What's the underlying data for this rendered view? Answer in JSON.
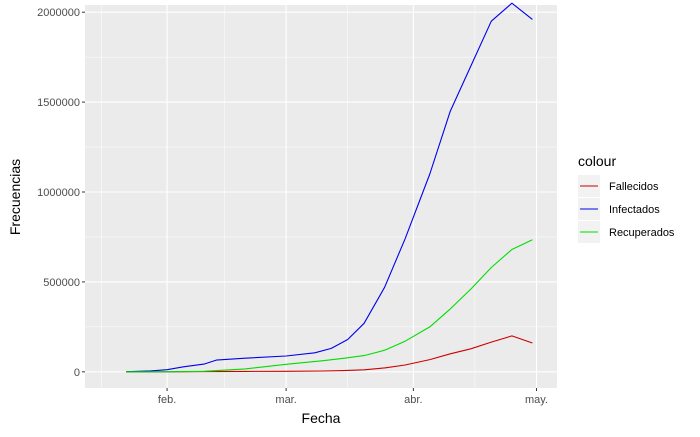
{
  "chart_data": {
    "type": "line",
    "title": "",
    "xlabel": "Fecha",
    "ylabel": "Frecuencias",
    "x_axis_type": "date",
    "xlim": [
      "2020-01-12",
      "2020-05-06"
    ],
    "ylim": [
      -90000,
      2040000
    ],
    "x_ticks": [
      {
        "date": "2020-02-01",
        "label": "feb."
      },
      {
        "date": "2020-03-01",
        "label": "mar."
      },
      {
        "date": "2020-04-01",
        "label": "abr."
      },
      {
        "date": "2020-05-01",
        "label": "may."
      }
    ],
    "y_ticks": [
      {
        "value": 0,
        "label": "0"
      },
      {
        "value": 500000,
        "label": "500000"
      },
      {
        "value": 1000000,
        "label": "1000000"
      },
      {
        "value": 1500000,
        "label": "1500000"
      },
      {
        "value": 2000000,
        "label": "2000000"
      }
    ],
    "grid": true,
    "legend": {
      "title": "colour",
      "position": "right"
    },
    "series": [
      {
        "name": "Fallecidos",
        "color": "#cc0000",
        "points": [
          [
            "2020-01-22",
            0
          ],
          [
            "2020-02-01",
            260
          ],
          [
            "2020-02-10",
            1000
          ],
          [
            "2020-02-20",
            2200
          ],
          [
            "2020-03-01",
            3000
          ],
          [
            "2020-03-10",
            4300
          ],
          [
            "2020-03-15",
            6500
          ],
          [
            "2020-03-20",
            11000
          ],
          [
            "2020-03-25",
            22000
          ],
          [
            "2020-03-30",
            38000
          ],
          [
            "2020-04-05",
            68000
          ],
          [
            "2020-04-10",
            100000
          ],
          [
            "2020-04-15",
            128000
          ],
          [
            "2020-04-20",
            165000
          ],
          [
            "2020-04-25",
            200000
          ],
          [
            "2020-04-30",
            160000
          ]
        ]
      },
      {
        "name": "Infectados",
        "color": "#0000ee",
        "points": [
          [
            "2020-01-22",
            555
          ],
          [
            "2020-01-28",
            5000
          ],
          [
            "2020-02-01",
            12000
          ],
          [
            "2020-02-05",
            28000
          ],
          [
            "2020-02-10",
            43000
          ],
          [
            "2020-02-13",
            65000
          ],
          [
            "2020-02-20",
            76000
          ],
          [
            "2020-03-01",
            88000
          ],
          [
            "2020-03-08",
            106000
          ],
          [
            "2020-03-12",
            130000
          ],
          [
            "2020-03-16",
            180000
          ],
          [
            "2020-03-20",
            270000
          ],
          [
            "2020-03-25",
            470000
          ],
          [
            "2020-03-30",
            740000
          ],
          [
            "2020-04-05",
            1100000
          ],
          [
            "2020-04-10",
            1450000
          ],
          [
            "2020-04-15",
            1700000
          ],
          [
            "2020-04-20",
            1950000
          ],
          [
            "2020-04-25",
            2050000
          ],
          [
            "2020-04-30",
            1960000
          ]
        ]
      },
      {
        "name": "Recuperados",
        "color": "#00dd00",
        "points": [
          [
            "2020-01-22",
            0
          ],
          [
            "2020-02-01",
            300
          ],
          [
            "2020-02-10",
            3000
          ],
          [
            "2020-02-20",
            16000
          ],
          [
            "2020-03-01",
            42000
          ],
          [
            "2020-03-10",
            62000
          ],
          [
            "2020-03-15",
            75000
          ],
          [
            "2020-03-20",
            90000
          ],
          [
            "2020-03-25",
            120000
          ],
          [
            "2020-03-30",
            170000
          ],
          [
            "2020-04-05",
            250000
          ],
          [
            "2020-04-10",
            350000
          ],
          [
            "2020-04-15",
            460000
          ],
          [
            "2020-04-20",
            580000
          ],
          [
            "2020-04-25",
            680000
          ],
          [
            "2020-04-30",
            735000
          ]
        ]
      }
    ]
  }
}
